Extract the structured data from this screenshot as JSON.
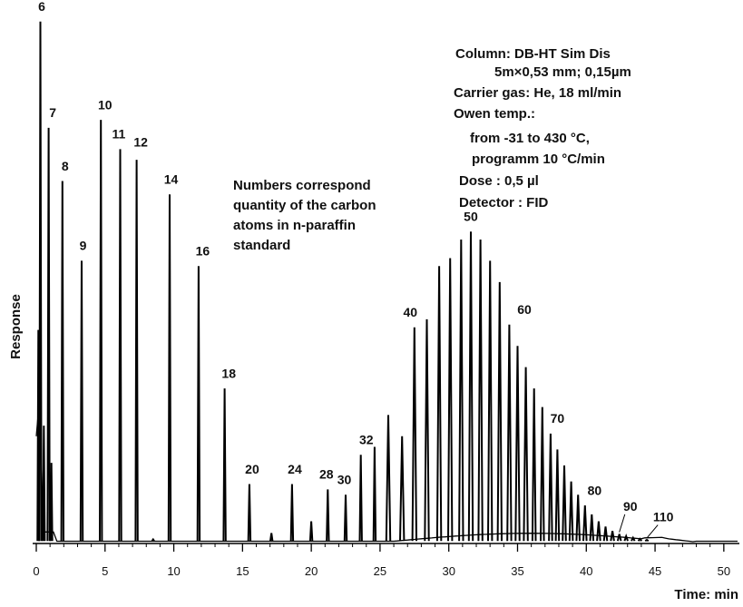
{
  "chart_data": {
    "type": "line",
    "title": "",
    "xlabel": "Time: min",
    "ylabel": "Response",
    "xlim": [
      0,
      51
    ],
    "ylim": [
      0,
      100
    ],
    "x_ticks": [
      "0",
      "5",
      "10",
      "15",
      "20",
      "25",
      "30",
      "35",
      "40",
      "45",
      "50"
    ],
    "grid": false,
    "series": [
      {
        "peaks": [
          {
            "x": 0.3,
            "y": 98.0,
            "label": "6"
          },
          {
            "x": 0.9,
            "y": 78.0,
            "label": "7"
          },
          {
            "x": 1.9,
            "y": 68.0,
            "label": "8"
          },
          {
            "x": 3.3,
            "y": 53.0,
            "label": "9"
          },
          {
            "x": 4.7,
            "y": 79.5,
            "label": "10"
          },
          {
            "x": 6.1,
            "y": 74.0,
            "label": "11"
          },
          {
            "x": 7.3,
            "y": 72.0,
            "label": "12"
          },
          {
            "x": 8.5,
            "y": 0.6,
            "label": ""
          },
          {
            "x": 9.7,
            "y": 65.5,
            "label": "14"
          },
          {
            "x": 11.8,
            "y": 52.0,
            "label": "16"
          },
          {
            "x": 13.7,
            "y": 29.0,
            "label": "18"
          },
          {
            "x": 15.5,
            "y": 11.0,
            "label": "20"
          },
          {
            "x": 17.1,
            "y": 1.8,
            "label": ""
          },
          {
            "x": 18.6,
            "y": 11.0,
            "label": "24"
          },
          {
            "x": 20.0,
            "y": 4.0,
            "label": ""
          },
          {
            "x": 21.2,
            "y": 10.0,
            "label": "28"
          },
          {
            "x": 22.5,
            "y": 9.0,
            "label": "30"
          },
          {
            "x": 23.6,
            "y": 16.5,
            "label": "32"
          },
          {
            "x": 24.6,
            "y": 18.0,
            "label": ""
          },
          {
            "x": 25.6,
            "y": 24.0,
            "label": ""
          },
          {
            "x": 26.6,
            "y": 20.0,
            "label": ""
          },
          {
            "x": 27.5,
            "y": 40.5,
            "label": "40"
          },
          {
            "x": 28.4,
            "y": 42.0,
            "label": ""
          },
          {
            "x": 29.3,
            "y": 52.0,
            "label": ""
          },
          {
            "x": 30.1,
            "y": 53.5,
            "label": ""
          },
          {
            "x": 30.9,
            "y": 57.0,
            "label": ""
          },
          {
            "x": 31.6,
            "y": 58.5,
            "label": "50"
          },
          {
            "x": 32.3,
            "y": 57.0,
            "label": ""
          },
          {
            "x": 33.0,
            "y": 53.0,
            "label": ""
          },
          {
            "x": 33.7,
            "y": 49.0,
            "label": ""
          },
          {
            "x": 34.4,
            "y": 41.0,
            "label": "60"
          },
          {
            "x": 35.0,
            "y": 37.0,
            "label": ""
          },
          {
            "x": 35.6,
            "y": 33.0,
            "label": ""
          },
          {
            "x": 36.2,
            "y": 29.0,
            "label": ""
          },
          {
            "x": 36.8,
            "y": 25.5,
            "label": ""
          },
          {
            "x": 37.4,
            "y": 20.5,
            "label": "70"
          },
          {
            "x": 37.9,
            "y": 17.5,
            "label": ""
          },
          {
            "x": 38.4,
            "y": 14.5,
            "label": ""
          },
          {
            "x": 38.9,
            "y": 11.5,
            "label": ""
          },
          {
            "x": 39.4,
            "y": 9.0,
            "label": ""
          },
          {
            "x": 39.9,
            "y": 7.0,
            "label": "80"
          },
          {
            "x": 40.4,
            "y": 5.3,
            "label": ""
          },
          {
            "x": 40.9,
            "y": 4.0,
            "label": ""
          },
          {
            "x": 41.4,
            "y": 3.0,
            "label": ""
          },
          {
            "x": 41.9,
            "y": 2.2,
            "label": ""
          },
          {
            "x": 42.4,
            "y": 1.6,
            "label": "90"
          },
          {
            "x": 42.9,
            "y": 1.2,
            "label": ""
          },
          {
            "x": 43.4,
            "y": 0.9,
            "label": ""
          },
          {
            "x": 43.9,
            "y": 0.7,
            "label": ""
          },
          {
            "x": 44.4,
            "y": 0.5,
            "label": "110"
          }
        ]
      }
    ],
    "label_positions": {
      "6": [
        0.4,
        100
      ],
      "7": [
        1.2,
        80
      ],
      "8": [
        2.1,
        70
      ],
      "9": [
        3.4,
        55
      ],
      "10": [
        5.0,
        81.5
      ],
      "11": [
        6.0,
        76
      ],
      "12": [
        7.6,
        74.5
      ],
      "14": [
        9.8,
        67.5
      ],
      "16": [
        12.1,
        54
      ],
      "18": [
        14.0,
        31
      ],
      "20": [
        15.7,
        13
      ],
      "24": [
        18.8,
        13
      ],
      "28": [
        21.1,
        12
      ],
      "30": [
        22.4,
        11
      ],
      "32": [
        24.0,
        18.5
      ],
      "40": [
        27.2,
        42.5
      ],
      "50": [
        31.6,
        60.5
      ],
      "60": [
        35.5,
        43
      ],
      "70": [
        37.9,
        22.5
      ],
      "80": [
        40.6,
        9
      ],
      "90": [
        43.2,
        6
      ],
      "110": [
        45.6,
        4
      ]
    },
    "annotations": [
      "Numbers correspond",
      "quantity of the carbon",
      "atoms in n-paraffin",
      "standard"
    ],
    "conditions": [
      "Column: DB-HT Sim Dis",
      "5m×0,53 mm; 0,15µm",
      "Carrier gas: He, 18 ml/min",
      "Owen temp.:",
      "from -31  to  430 °C,",
      "programm  10 °C/min",
      "Dose : 0,5 µl",
      "Detector : FID"
    ]
  }
}
